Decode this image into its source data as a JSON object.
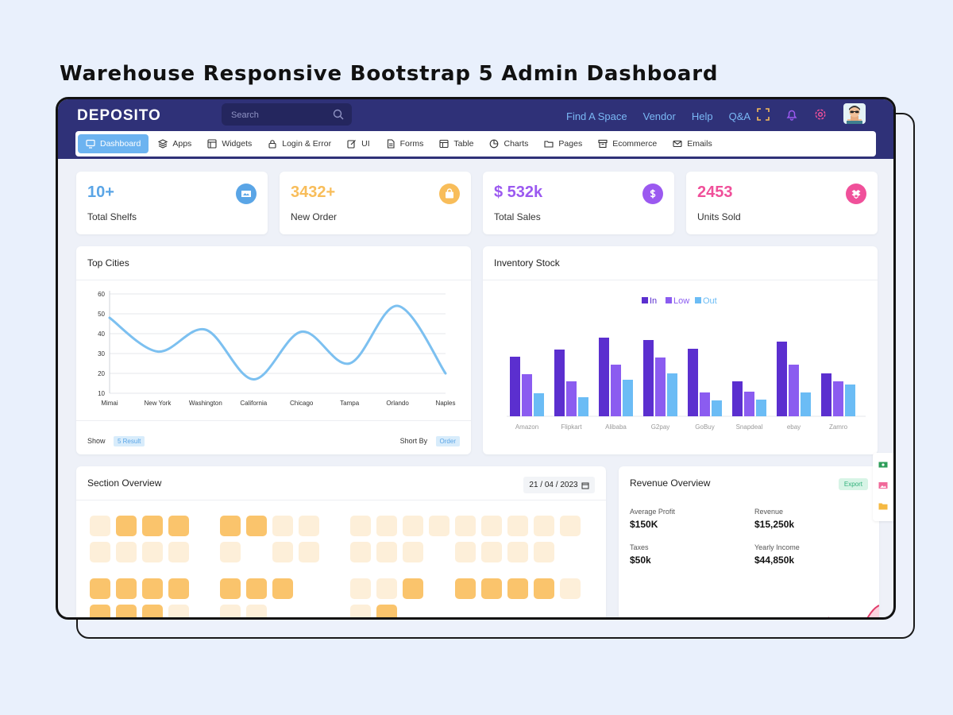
{
  "page_heading": "Warehouse Responsive Bootstrap 5 Admin Dashboard",
  "brand": "DEPOSITO",
  "search": {
    "placeholder": "Search"
  },
  "top_links": [
    "Find A Space",
    "Vendor",
    "Help",
    "Q&A"
  ],
  "menu": [
    {
      "label": "Dashboard",
      "icon": "monitor-icon",
      "active": true
    },
    {
      "label": "Apps",
      "icon": "layers-icon"
    },
    {
      "label": "Widgets",
      "icon": "window-icon"
    },
    {
      "label": "Login & Error",
      "icon": "lock-icon"
    },
    {
      "label": "UI",
      "icon": "edit-icon"
    },
    {
      "label": "Forms",
      "icon": "file-icon"
    },
    {
      "label": "Table",
      "icon": "table-icon"
    },
    {
      "label": "Charts",
      "icon": "pie-chart-icon"
    },
    {
      "label": "Pages",
      "icon": "folder-icon"
    },
    {
      "label": "Ecommerce",
      "icon": "box-icon"
    },
    {
      "label": "Emails",
      "icon": "mail-icon"
    }
  ],
  "stats": [
    {
      "value": "10+",
      "label": "Total Shelfs",
      "color": "#5aa5e6",
      "icon": "shelf-icon"
    },
    {
      "value": "3432+",
      "label": "New Order",
      "color": "#f8bd5a",
      "icon": "bag-icon"
    },
    {
      "value": "$ 532k",
      "label": "Total Sales",
      "color": "#9b59f0",
      "icon": "dollar-icon"
    },
    {
      "value": "2453",
      "label": "Units Sold",
      "color": "#f0509a",
      "icon": "box-open-icon"
    }
  ],
  "top_cities": {
    "title": "Top Cities",
    "show_label": "Show",
    "show_value": "5 Result",
    "sort_label": "Short By",
    "sort_value": "Order"
  },
  "inventory": {
    "title": "Inventory Stock"
  },
  "section_overview": {
    "title": "Section Overview",
    "date": "21 / 04 / 2023"
  },
  "revenue": {
    "title": "Revenue Overview",
    "export": "Export",
    "items": [
      {
        "label": "Average Profit",
        "value": "$150K"
      },
      {
        "label": "Revenue",
        "value": "$15,250k"
      },
      {
        "label": "Taxes",
        "value": "$50k"
      },
      {
        "label": "Yearly Income",
        "value": "$44,850k"
      }
    ]
  },
  "chart_data": [
    {
      "type": "line",
      "title": "Top Cities",
      "categories": [
        "Mimai",
        "New York",
        "Washington",
        "California",
        "Chicago",
        "Tampa",
        "Orlando",
        "Naples"
      ],
      "series": [
        {
          "values": [
            48,
            31,
            42,
            17,
            41,
            25,
            54,
            20
          ]
        }
      ],
      "ylim": [
        10,
        60
      ],
      "yticks": [
        60,
        50,
        40,
        30,
        20,
        10
      ],
      "color": "#7cc0f0",
      "grid": true
    },
    {
      "type": "bar",
      "title": "Inventory Stock",
      "legend_position": "top-center",
      "categories": [
        "Amazon",
        "Flipkart",
        "Alibaba",
        "G2pay",
        "GoBuy",
        "Snapdeal",
        "ebay",
        "Zamro"
      ],
      "series": [
        {
          "name": "In",
          "color": "#5b2fcf",
          "values": [
            75,
            84,
            99,
            96,
            85,
            44,
            94,
            54
          ]
        },
        {
          "name": "Low",
          "color": "#8b5cf0",
          "values": [
            53,
            44,
            65,
            74,
            30,
            31,
            65,
            44
          ]
        },
        {
          "name": "Out",
          "color": "#6bbcf5",
          "values": [
            29,
            24,
            46,
            54,
            20,
            21,
            30,
            40
          ]
        }
      ],
      "ylim": [
        0,
        110
      ]
    }
  ]
}
